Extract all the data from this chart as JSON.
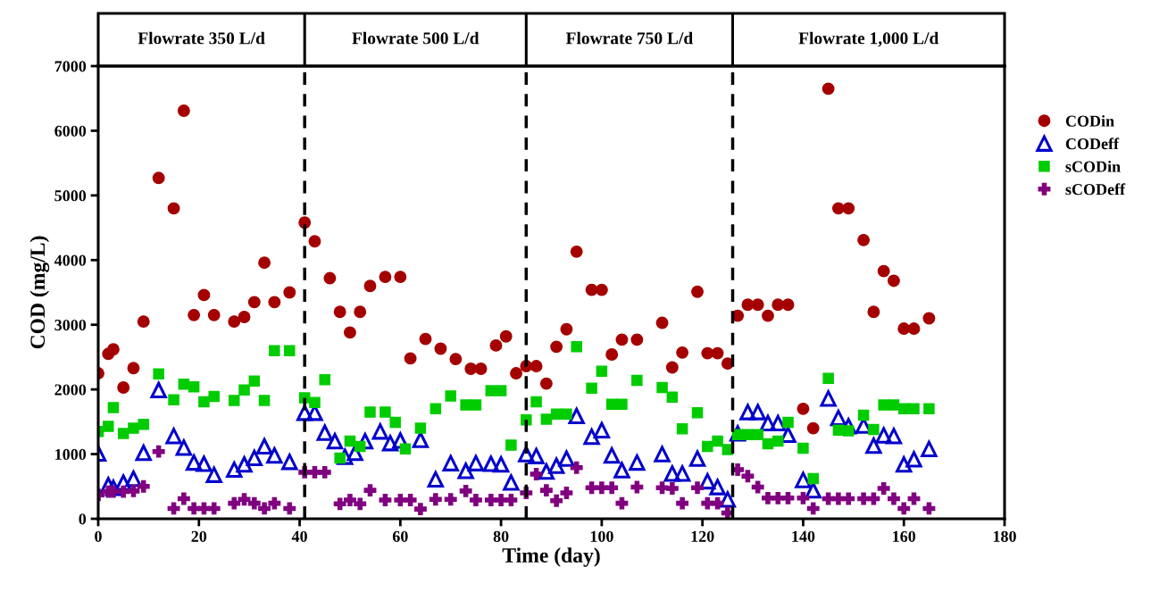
{
  "chart_data": {
    "type": "scatter",
    "xlabel": "Time (day)",
    "ylabel": "COD (mg/L)",
    "xlim": [
      0,
      180
    ],
    "ylim": [
      0,
      7000
    ],
    "xticks": [
      0,
      20,
      40,
      60,
      80,
      100,
      120,
      140,
      160,
      180
    ],
    "yticks": [
      0,
      1000,
      2000,
      3000,
      4000,
      5000,
      6000,
      7000
    ],
    "grid": false,
    "legend": "right",
    "ref_lines": [
      {
        "axis": "x",
        "value": 41,
        "color": "#000000",
        "line_style": "dashed"
      },
      {
        "axis": "x",
        "value": 85,
        "color": "#000000",
        "line_style": "dashed"
      },
      {
        "axis": "x",
        "value": 126,
        "color": "#000000",
        "line_style": "dashed"
      }
    ],
    "annotations": [
      "Flowrate 350 L/d",
      "Flowrate 500 L/d",
      "Flowrate 750 L/d",
      "Flowrate 1,000 L/d"
    ],
    "series": [
      {
        "name": "CODin",
        "color": "#a50000",
        "marker": "circle",
        "x": [
          0,
          2,
          3,
          5,
          7,
          9,
          12,
          15,
          17,
          19,
          21,
          23,
          27,
          29,
          31,
          33,
          35,
          38,
          41,
          43,
          46,
          48,
          50,
          52,
          54,
          57,
          60,
          62,
          65,
          68,
          71,
          74,
          76,
          79,
          81,
          83,
          85,
          87,
          89,
          91,
          93,
          95,
          98,
          100,
          102,
          104,
          107,
          112,
          114,
          116,
          119,
          121,
          123,
          125,
          127,
          129,
          131,
          133,
          135,
          137,
          140,
          142,
          145,
          147,
          149,
          152,
          154,
          156,
          158,
          160,
          162,
          165
        ],
        "values": [
          2250,
          2550,
          2620,
          2030,
          2330,
          3050,
          5270,
          4800,
          6310,
          3150,
          3460,
          3150,
          3050,
          3120,
          3350,
          3960,
          3350,
          3500,
          4580,
          4290,
          3720,
          3200,
          2880,
          3200,
          3600,
          3740,
          3740,
          2480,
          2780,
          2630,
          2470,
          2320,
          2320,
          2680,
          2820,
          2250,
          2360,
          2360,
          2090,
          2660,
          2930,
          4130,
          3540,
          3540,
          2540,
          2770,
          2770,
          3030,
          2340,
          2570,
          3510,
          2560,
          2560,
          2400,
          3140,
          3310,
          3310,
          3140,
          3310,
          3310,
          1700,
          1400,
          6650,
          4800,
          4800,
          4310,
          3200,
          3830,
          3680,
          2940,
          2940,
          3100
        ]
      },
      {
        "name": "CODeff",
        "color": "#0000cc",
        "marker": "triangle",
        "x": [
          0,
          2,
          3,
          5,
          7,
          9,
          12,
          15,
          17,
          19,
          21,
          23,
          27,
          29,
          31,
          33,
          35,
          38,
          41,
          43,
          45,
          47,
          49,
          51,
          53,
          56,
          58,
          60,
          64,
          67,
          70,
          73,
          75,
          78,
          80,
          82,
          85,
          87,
          89,
          91,
          93,
          95,
          98,
          100,
          102,
          104,
          107,
          112,
          114,
          116,
          119,
          121,
          123,
          125,
          127,
          129,
          131,
          133,
          135,
          137,
          140,
          142,
          145,
          147,
          149,
          152,
          154,
          156,
          158,
          160,
          162,
          165
        ],
        "values": [
          1010,
          520,
          480,
          560,
          620,
          1020,
          1990,
          1280,
          1100,
          870,
          850,
          680,
          760,
          840,
          940,
          1120,
          980,
          880,
          1640,
          1640,
          1330,
          1200,
          960,
          1020,
          1200,
          1350,
          1170,
          1210,
          1220,
          610,
          860,
          740,
          860,
          850,
          840,
          560,
          1000,
          970,
          730,
          820,
          930,
          1590,
          1270,
          1370,
          980,
          750,
          870,
          1000,
          700,
          700,
          930,
          580,
          490,
          300,
          1320,
          1650,
          1650,
          1480,
          1480,
          1300,
          600,
          440,
          1860,
          1560,
          1430,
          1440,
          1130,
          1290,
          1280,
          840,
          920,
          1080
        ]
      },
      {
        "name": "sCODin",
        "color": "#00cc00",
        "marker": "square",
        "x": [
          0,
          2,
          3,
          5,
          7,
          9,
          12,
          15,
          17,
          19,
          21,
          23,
          27,
          29,
          31,
          33,
          35,
          38,
          41,
          43,
          45,
          48,
          50,
          52,
          54,
          57,
          59,
          61,
          64,
          67,
          70,
          73,
          75,
          78,
          80,
          82,
          85,
          87,
          89,
          91,
          93,
          95,
          98,
          100,
          102,
          104,
          107,
          112,
          114,
          116,
          119,
          121,
          123,
          125,
          127,
          129,
          131,
          133,
          135,
          137,
          140,
          142,
          145,
          147,
          149,
          152,
          154,
          156,
          158,
          160,
          162,
          165
        ],
        "values": [
          1350,
          1430,
          1720,
          1320,
          1400,
          1460,
          2240,
          1840,
          2080,
          2040,
          1810,
          1890,
          1830,
          1990,
          2130,
          1830,
          2600,
          2600,
          1870,
          1800,
          2150,
          940,
          1200,
          1120,
          1650,
          1650,
          1490,
          1080,
          1400,
          1700,
          1900,
          1760,
          1760,
          1980,
          1980,
          1140,
          1530,
          1810,
          1540,
          1620,
          1620,
          2660,
          2020,
          2280,
          1770,
          1770,
          2140,
          2030,
          1880,
          1390,
          1640,
          1120,
          1200,
          1070,
          1300,
          1300,
          1300,
          1160,
          1200,
          1490,
          1090,
          620,
          2170,
          1370,
          1360,
          1600,
          1380,
          1760,
          1760,
          1700,
          1700,
          1700
        ]
      },
      {
        "name": "sCODeff",
        "color": "#800080",
        "marker": "cross",
        "x": [
          0,
          2,
          3,
          5,
          7,
          9,
          12,
          15,
          17,
          19,
          21,
          23,
          27,
          29,
          31,
          33,
          35,
          38,
          41,
          43,
          45,
          48,
          50,
          52,
          54,
          57,
          60,
          62,
          64,
          67,
          70,
          73,
          75,
          78,
          80,
          82,
          85,
          87,
          89,
          91,
          93,
          95,
          98,
          100,
          102,
          104,
          107,
          112,
          114,
          116,
          119,
          121,
          123,
          125,
          127,
          129,
          131,
          133,
          135,
          137,
          140,
          142,
          145,
          147,
          149,
          152,
          154,
          156,
          158,
          160,
          162,
          165
        ],
        "values": [
          370,
          420,
          420,
          420,
          430,
          500,
          1040,
          160,
          310,
          160,
          160,
          160,
          240,
          300,
          240,
          160,
          240,
          160,
          720,
          720,
          720,
          230,
          290,
          230,
          440,
          290,
          290,
          290,
          150,
          300,
          300,
          430,
          290,
          290,
          290,
          290,
          400,
          690,
          440,
          280,
          400,
          790,
          480,
          480,
          480,
          240,
          490,
          480,
          470,
          240,
          480,
          240,
          240,
          90,
          760,
          660,
          490,
          320,
          320,
          320,
          320,
          160,
          310,
          310,
          310,
          310,
          310,
          470,
          310,
          160,
          310,
          160
        ]
      }
    ]
  }
}
